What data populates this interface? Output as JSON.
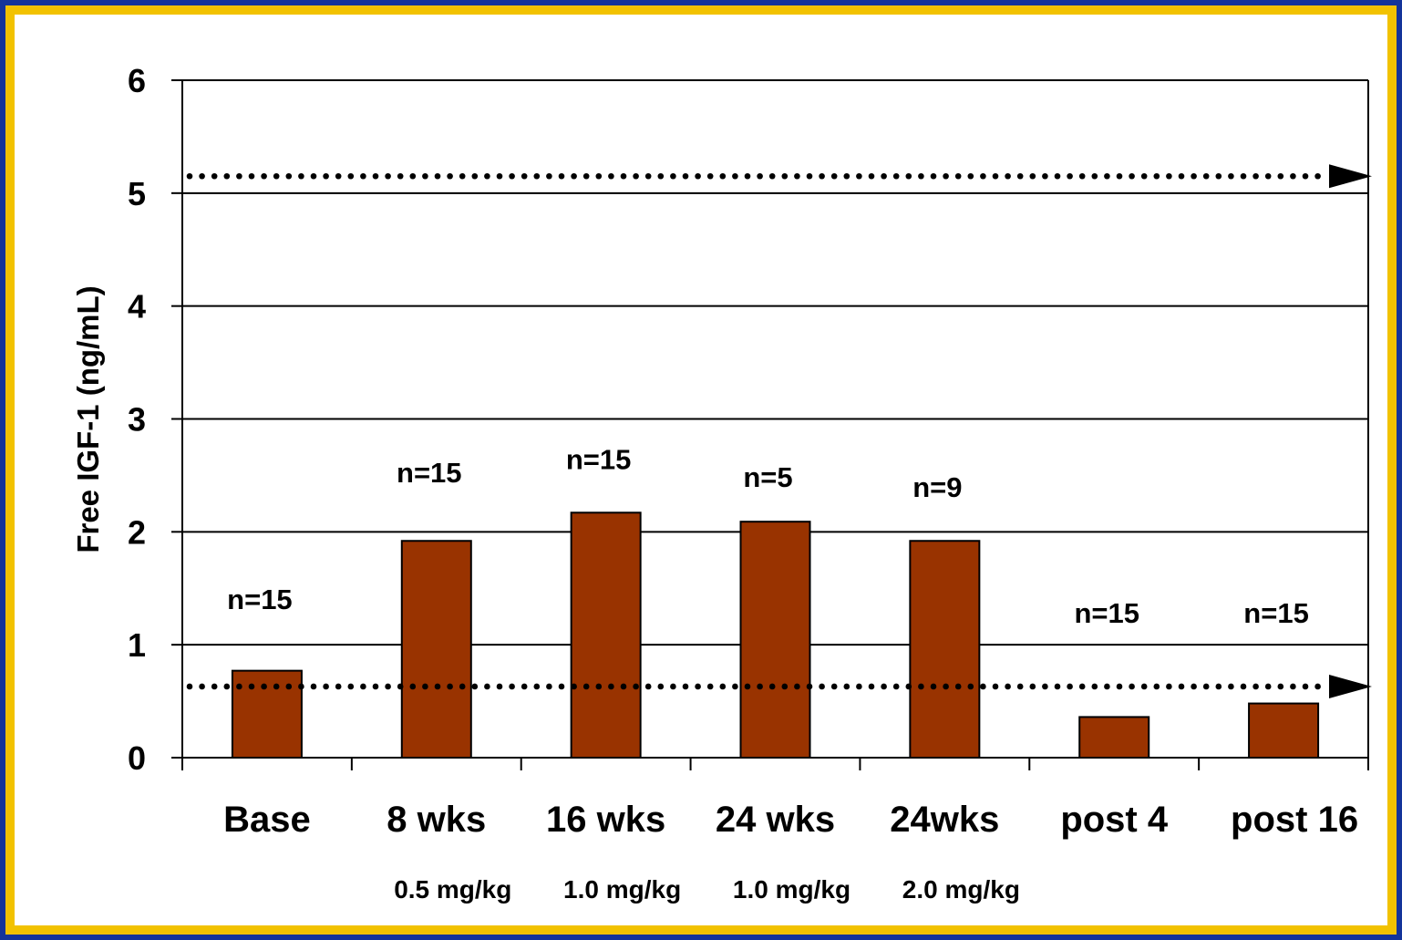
{
  "chart_data": {
    "type": "bar",
    "title": "",
    "ylabel": "Free IGF-1 (ng/mL)",
    "xlabel": "",
    "ylim": [
      0,
      6
    ],
    "yticks": [
      "0",
      "1",
      "2",
      "3",
      "4",
      "5",
      "6"
    ],
    "grid": true,
    "categories": [
      "Base",
      "8 wks",
      "16 wks",
      "24 wks",
      "24wks",
      "post 4",
      "post 16"
    ],
    "doses": [
      "",
      "0.5 mg/kg",
      "1.0 mg/kg",
      "1.0 mg/kg",
      "2.0 mg/kg",
      "",
      ""
    ],
    "values": [
      0.77,
      1.92,
      2.17,
      2.09,
      1.92,
      0.36,
      0.48
    ],
    "n_labels": [
      "n=15",
      "n=15",
      "n=15",
      "n=5",
      "n=9",
      "n=15",
      "n=15"
    ],
    "reference_lines": [
      {
        "value": 5.15,
        "style": "dotted-arrow"
      },
      {
        "value": 0.63,
        "style": "dotted-arrow"
      }
    ],
    "bar_color": "#993300"
  },
  "colors": {
    "frame_blue": "#14349a",
    "frame_gold": "#f2c200",
    "bar": "#993300"
  }
}
